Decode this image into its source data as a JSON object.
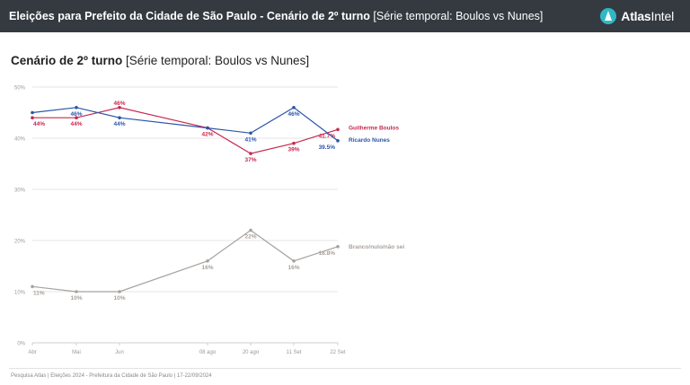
{
  "header": {
    "title_bold": "Eleições para Prefeito da Cidade de São Paulo - Cenário de 2º turno",
    "title_sub": "[Série temporal: Boulos vs Nunes]",
    "logo_text_bold": "Atlas",
    "logo_text_light": "Intel"
  },
  "chart_heading": {
    "bold": "Cenário de 2º turno",
    "sub": "[Série temporal: Boulos vs Nunes]"
  },
  "footer": {
    "text": "Pesquisa Atlas  |  Eleições 2024 - Prefeitura da Cidade de São Paulo  |  17-22/09/2024"
  },
  "colors": {
    "boulos": "#c8284f",
    "nunes": "#2b55a8",
    "branco": "#a8a29e",
    "grid": "#e6e6e6",
    "axis_text": "#9a9a9a"
  },
  "chart_data": {
    "type": "line",
    "categories": [
      "Abr",
      "Mai",
      "Jun",
      "08 ago",
      "20 ago",
      "11 Set",
      "22 Set"
    ],
    "ylim": [
      0,
      50
    ],
    "yticks": [
      "0%",
      "10%",
      "20%",
      "30%",
      "40%",
      "50%"
    ],
    "grid": true,
    "series": [
      {
        "name": "Guilherme Boulos",
        "color": "#c8284f",
        "values": [
          44,
          44,
          46,
          42,
          37,
          39,
          41.7
        ],
        "labels": [
          "44%",
          "44%",
          "46%",
          "42%",
          "37%",
          "39%",
          "41.7%"
        ],
        "label_side": [
          "below",
          "below",
          "above",
          "below",
          "below",
          "below",
          "below"
        ]
      },
      {
        "name": "Ricardo Nunes",
        "color": "#2b55a8",
        "values": [
          45,
          46,
          44,
          42,
          41,
          46,
          39.5
        ],
        "labels": [
          "",
          "46%",
          "44%",
          "",
          "41%",
          "46%",
          "39.5%"
        ],
        "label_side": [
          "below",
          "below",
          "below",
          "below",
          "below",
          "below",
          "below"
        ]
      },
      {
        "name": "Branco/nulo/não sei",
        "color": "#a8a29e",
        "values": [
          11,
          10,
          10,
          16,
          22,
          16,
          18.8
        ],
        "labels": [
          "11%",
          "10%",
          "10%",
          "16%",
          "22%",
          "16%",
          "18.8%"
        ],
        "label_side": [
          "below",
          "below",
          "below",
          "below",
          "below",
          "below",
          "below"
        ]
      }
    ]
  }
}
